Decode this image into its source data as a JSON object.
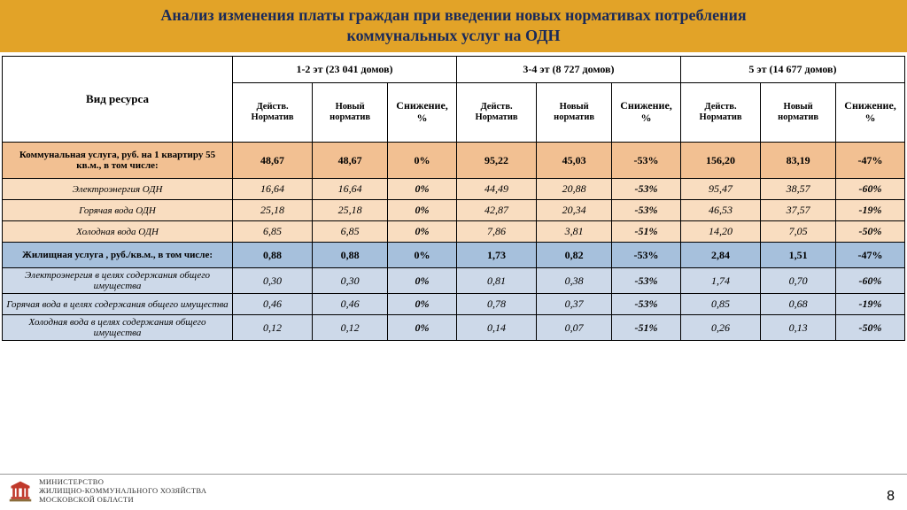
{
  "title_line1": "Анализ изменения платы граждан при введении новых нормативах потребления",
  "title_line2": "коммунальных услуг на ОДН",
  "colors": {
    "title_bg": "#e2a328",
    "title_text": "#1a2a5a",
    "row_orange": "#f2c092",
    "row_orange_light": "#f9ddc0",
    "row_blue": "#a6c0dc",
    "row_blue_light": "#cdd9e9"
  },
  "table": {
    "resource_header": "Вид ресурса",
    "groups": [
      "1-2 эт (23 041 домов)",
      "3-4 эт (8 727 домов)",
      "5 эт (14 677 домов)"
    ],
    "subheaders": [
      "Действ. Норматив",
      "Новый норматив",
      "Снижение, %"
    ],
    "rows": [
      {
        "style": "orange",
        "bold": true,
        "label": "Коммунальная услуга, руб. на 1 квартиру 55 кв.м., в том числе:",
        "cells": [
          "48,67",
          "48,67",
          "0%",
          "95,22",
          "45,03",
          "-53%",
          "156,20",
          "83,19",
          "-47%"
        ]
      },
      {
        "style": "orange-light",
        "bold": false,
        "label": "Электроэнергия ОДН",
        "cells": [
          "16,64",
          "16,64",
          "0%",
          "44,49",
          "20,88",
          "-53%",
          "95,47",
          "38,57",
          "-60%"
        ]
      },
      {
        "style": "orange-light",
        "bold": false,
        "label": "Горячая вода ОДН",
        "cells": [
          "25,18",
          "25,18",
          "0%",
          "42,87",
          "20,34",
          "-53%",
          "46,53",
          "37,57",
          "-19%"
        ]
      },
      {
        "style": "orange-light",
        "bold": false,
        "label": "Холодная вода ОДН",
        "cells": [
          "6,85",
          "6,85",
          "0%",
          "7,86",
          "3,81",
          "-51%",
          "14,20",
          "7,05",
          "-50%"
        ]
      },
      {
        "style": "blue",
        "bold": true,
        "label": "Жилищная услуга , руб./кв.м., в том числе:",
        "cells": [
          "0,88",
          "0,88",
          "0%",
          "1,73",
          "0,82",
          "-53%",
          "2,84",
          "1,51",
          "-47%"
        ]
      },
      {
        "style": "blue-light",
        "bold": false,
        "label": "Электроэнергия в целях содержания общего имущества",
        "cells": [
          "0,30",
          "0,30",
          "0%",
          "0,81",
          "0,38",
          "-53%",
          "1,74",
          "0,70",
          "-60%"
        ]
      },
      {
        "style": "blue-light",
        "bold": false,
        "label": "Горячая вода в целях содержания общего имущества",
        "cells": [
          "0,46",
          "0,46",
          "0%",
          "0,78",
          "0,37",
          "-53%",
          "0,85",
          "0,68",
          "-19%"
        ]
      },
      {
        "style": "blue-light",
        "bold": false,
        "label": "Холодная вода в целях содержания общего имущества",
        "cells": [
          "0,12",
          "0,12",
          "0%",
          "0,14",
          "0,07",
          "-51%",
          "0,26",
          "0,13",
          "-50%"
        ]
      }
    ]
  },
  "footer": {
    "line1": "МИНИСТЕРСТВО",
    "line2": "ЖИЛИЩНО-КОММУНАЛЬНОГО ХОЗЯЙСТВА",
    "line3": "МОСКОВСКОЙ ОБЛАСТИ"
  },
  "page_number": "8"
}
